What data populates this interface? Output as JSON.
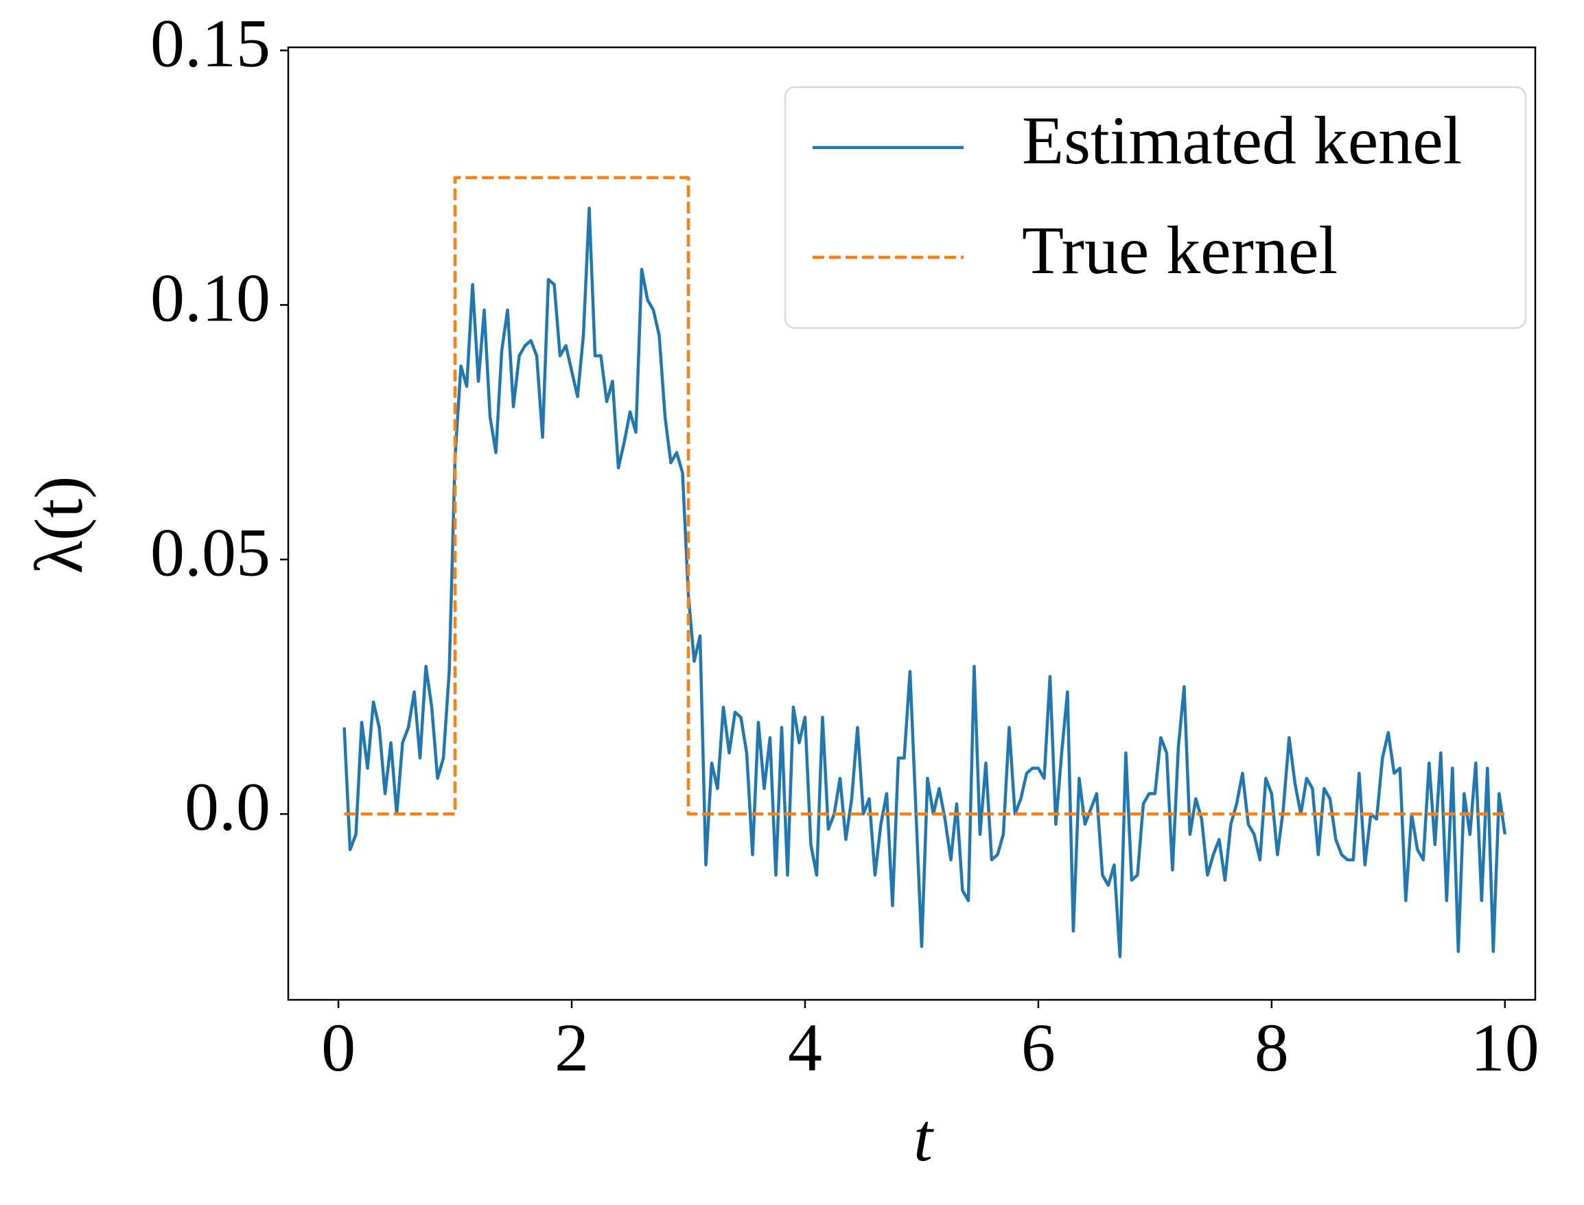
{
  "chart_data": {
    "type": "line",
    "xlabel": "t",
    "ylabel": "λ(t)",
    "x": [
      0.05,
      0.1,
      0.15,
      0.2,
      0.25,
      0.3,
      0.35,
      0.4,
      0.45,
      0.5,
      0.55,
      0.6,
      0.65,
      0.7,
      0.75,
      0.8,
      0.85,
      0.9,
      0.95,
      1.0,
      1.05,
      1.1,
      1.15,
      1.2,
      1.25,
      1.3,
      1.35,
      1.4,
      1.45,
      1.5,
      1.55,
      1.6,
      1.65,
      1.7,
      1.75,
      1.8,
      1.85,
      1.9,
      1.95,
      2.0,
      2.05,
      2.1,
      2.15,
      2.2,
      2.25,
      2.3,
      2.35,
      2.4,
      2.45,
      2.5,
      2.55,
      2.6,
      2.65,
      2.7,
      2.75,
      2.8,
      2.85,
      2.9,
      2.95,
      3.0,
      3.05,
      3.1,
      3.15,
      3.2,
      3.25,
      3.3,
      3.35,
      3.4,
      3.45,
      3.5,
      3.55,
      3.6,
      3.65,
      3.7,
      3.75,
      3.8,
      3.85,
      3.9,
      3.95,
      4.0,
      4.05,
      4.1,
      4.15,
      4.2,
      4.25,
      4.3,
      4.35,
      4.4,
      4.45,
      4.5,
      4.55,
      4.6,
      4.65,
      4.7,
      4.75,
      4.8,
      4.85,
      4.9,
      4.95,
      5.0,
      5.05,
      5.1,
      5.15,
      5.2,
      5.25,
      5.3,
      5.35,
      5.4,
      5.45,
      5.5,
      5.55,
      5.6,
      5.65,
      5.7,
      5.75,
      5.8,
      5.85,
      5.9,
      5.95,
      6.0,
      6.05,
      6.1,
      6.15,
      6.2,
      6.25,
      6.3,
      6.35,
      6.4,
      6.45,
      6.5,
      6.55,
      6.6,
      6.65,
      6.7,
      6.75,
      6.8,
      6.85,
      6.9,
      6.95,
      7.0,
      7.05,
      7.1,
      7.15,
      7.2,
      7.25,
      7.3,
      7.35,
      7.4,
      7.45,
      7.5,
      7.55,
      7.6,
      7.65,
      7.7,
      7.75,
      7.8,
      7.85,
      7.9,
      7.95,
      8.0,
      8.05,
      8.1,
      8.15,
      8.2,
      8.25,
      8.3,
      8.35,
      8.4,
      8.45,
      8.5,
      8.55,
      8.6,
      8.65,
      8.7,
      8.75,
      8.8,
      8.85,
      8.9,
      8.95,
      9.0,
      9.05,
      9.1,
      9.15,
      9.2,
      9.25,
      9.3,
      9.35,
      9.4,
      9.45,
      9.5,
      9.55,
      9.6,
      9.65,
      9.7,
      9.75,
      9.8,
      9.85,
      9.9,
      9.95,
      10.0
    ],
    "series": [
      {
        "name": "Estimated kenel",
        "color": "#1f77b4",
        "dashed": false,
        "values": [
          0.017,
          -0.007,
          -0.004,
          0.018,
          0.009,
          0.022,
          0.017,
          0.004,
          0.014,
          0.0,
          0.014,
          0.017,
          0.024,
          0.011,
          0.029,
          0.021,
          0.007,
          0.011,
          0.028,
          0.07,
          0.088,
          0.084,
          0.104,
          0.085,
          0.099,
          0.078,
          0.071,
          0.091,
          0.099,
          0.08,
          0.09,
          0.092,
          0.093,
          0.09,
          0.074,
          0.105,
          0.104,
          0.09,
          0.092,
          0.087,
          0.082,
          0.094,
          0.119,
          0.09,
          0.09,
          0.081,
          0.085,
          0.068,
          0.073,
          0.079,
          0.075,
          0.107,
          0.101,
          0.099,
          0.094,
          0.078,
          0.069,
          0.071,
          0.067,
          0.043,
          0.03,
          0.035,
          -0.01,
          0.01,
          0.005,
          0.021,
          0.012,
          0.02,
          0.019,
          0.012,
          -0.008,
          0.018,
          0.005,
          0.015,
          -0.012,
          0.017,
          -0.012,
          0.021,
          0.014,
          0.019,
          -0.006,
          -0.012,
          0.019,
          -0.003,
          0.0,
          0.007,
          -0.005,
          0.003,
          0.017,
          0.0,
          0.003,
          -0.012,
          -0.002,
          0.004,
          -0.018,
          0.011,
          0.011,
          0.028,
          0.001,
          -0.026,
          0.007,
          0.0,
          0.005,
          -0.001,
          -0.009,
          0.002,
          -0.015,
          -0.017,
          0.029,
          -0.004,
          0.01,
          -0.009,
          -0.008,
          -0.004,
          0.017,
          0.0,
          0.003,
          0.008,
          0.009,
          0.009,
          0.007,
          0.027,
          -0.002,
          0.012,
          0.024,
          -0.023,
          0.007,
          -0.002,
          0.001,
          0.004,
          -0.012,
          -0.014,
          -0.01,
          -0.028,
          0.012,
          -0.013,
          -0.012,
          0.002,
          0.004,
          0.004,
          0.015,
          0.012,
          -0.011,
          0.013,
          0.025,
          -0.004,
          0.003,
          -0.001,
          -0.012,
          -0.008,
          -0.005,
          -0.013,
          -0.002,
          0.002,
          0.008,
          -0.002,
          -0.004,
          -0.009,
          0.007,
          0.004,
          -0.008,
          0.001,
          0.015,
          0.006,
          0.0,
          0.007,
          0.005,
          -0.008,
          0.005,
          0.003,
          -0.005,
          -0.008,
          -0.009,
          -0.009,
          0.008,
          -0.01,
          0.0,
          -0.001,
          0.011,
          0.016,
          0.008,
          0.009,
          -0.017,
          0.0,
          -0.007,
          -0.009,
          0.01,
          -0.006,
          0.012,
          -0.017,
          0.009,
          -0.027,
          0.004,
          -0.004,
          0.01,
          -0.017,
          0.009,
          -0.027,
          0.004,
          -0.004
        ]
      },
      {
        "name": "True kernel",
        "color": "#ff7f0e",
        "dashed": true,
        "x": [
          0.05,
          1.0,
          1.0,
          3.0,
          3.0,
          10.0
        ],
        "values": [
          0,
          0,
          0.125,
          0.125,
          0,
          0
        ]
      }
    ],
    "xlim": [
      -0.43,
      10.26
    ],
    "ylim": [
      -0.0365,
      0.1506
    ],
    "xticks": [
      0,
      2,
      4,
      6,
      8,
      10
    ],
    "yticks": [
      {
        "value": 0,
        "label": "0.0"
      },
      0.05,
      {
        "value": 0.1,
        "label": "0.10"
      },
      0.15
    ],
    "legend": "upper right",
    "grid": false
  }
}
